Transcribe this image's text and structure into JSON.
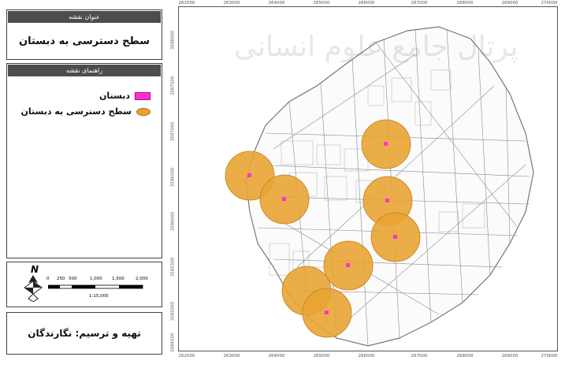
{
  "title_panel": {
    "header": "عنوان نقشه",
    "title": "سطح دسترسی به دبستان"
  },
  "legend_panel": {
    "header": "راهنمای نقشه",
    "items": [
      {
        "label": "دبستان",
        "symbol": "pink-rect",
        "color": "#ff33cc"
      },
      {
        "label": "سطح دسترسی به دبستان",
        "symbol": "orange-ellipse",
        "color": "#e8a433"
      }
    ]
  },
  "scale_panel": {
    "north_label": "N",
    "scale_ticks": [
      "0",
      "250",
      "500",
      "1,000",
      "1,500",
      "2,000"
    ],
    "scale_ratio": "1:15,000"
  },
  "credit_panel": {
    "text": "تهیه و ترسیم: نگارندگان"
  },
  "map": {
    "x_ticks": [
      "262000",
      "263000",
      "264000",
      "265000",
      "266000",
      "267000",
      "268000",
      "269000",
      "270000"
    ],
    "y_ticks": [
      "3588000",
      "3587500",
      "3587000",
      "3586500",
      "3586000",
      "3585500",
      "3585000",
      "3584500"
    ],
    "watermark": "پرتال جامع علوم انسانی"
  }
}
